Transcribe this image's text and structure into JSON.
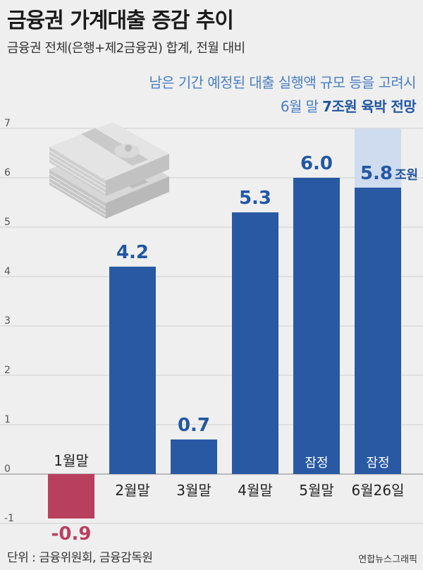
{
  "header": {
    "title": "금융권 가계대출 증감 추이",
    "subtitle": "금융권 전체(은행+제2금융권) 합계, 전월 대비"
  },
  "annotation": {
    "line1": "남은 기간 예정된 대출 실행액 규모 등을 고려시",
    "line2_prefix": "6월 말 ",
    "line2_highlight": "7조원 육박 전망"
  },
  "footer": {
    "source": "단위 : 금융위원회, 금융감독원",
    "credit": "연합뉴스그래픽"
  },
  "chart_data": {
    "type": "bar",
    "categories": [
      "1월말",
      "2월말",
      "3월말",
      "4월말",
      "5월말",
      "6월26일"
    ],
    "values": [
      -0.9,
      4.2,
      0.7,
      5.3,
      6.0,
      5.8
    ],
    "value_labels": [
      "-0.9",
      "4.2",
      "0.7",
      "5.3",
      "6.0",
      "5.8"
    ],
    "value_unit_last": "조원",
    "bar_notes": [
      "",
      "",
      "",
      "",
      "잠정",
      "잠정"
    ],
    "projection_value": 7,
    "ylim": [
      -1,
      7
    ],
    "yticks": [
      "-1",
      "0",
      "1",
      "2",
      "3",
      "4",
      "5",
      "6",
      "7"
    ],
    "grid": true,
    "colors": {
      "positive": "#2a59a4",
      "negative": "#b8405e",
      "projection": "#cfdbee",
      "label_positive": "#2257a3",
      "label_negative": "#b8405e"
    }
  }
}
